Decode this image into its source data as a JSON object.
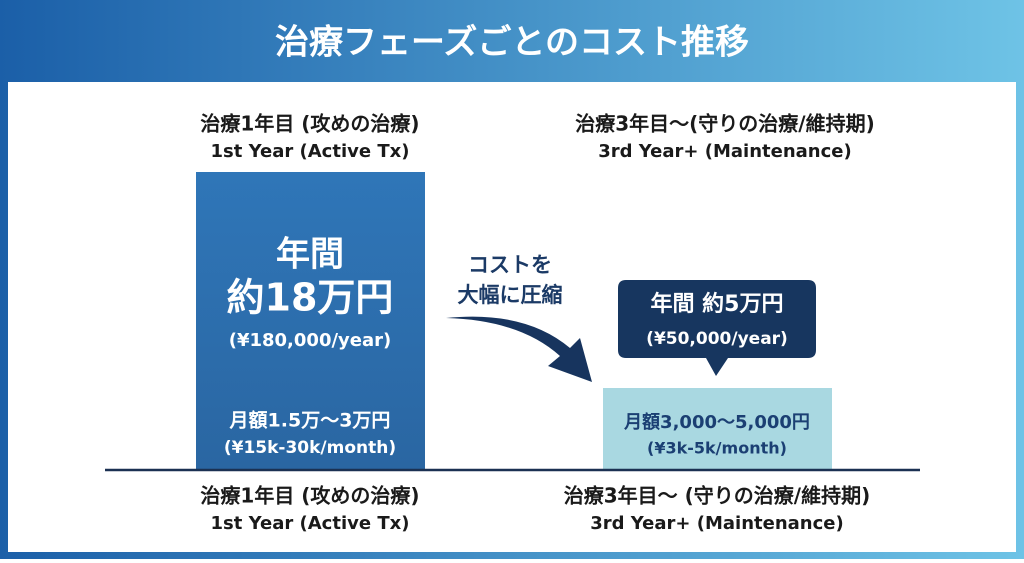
{
  "title": "治療フェーズごとのコスト推移",
  "columns": [
    {
      "header_ja": "治療1年目 (攻めの治療)",
      "header_en": "1st Year (Active Tx)",
      "annual_label": "年間",
      "annual_amount": "約18万円",
      "annual_en": "(¥180,000/year)",
      "monthly_ja": "月額1.5万〜3万円",
      "monthly_en": "(¥15k-30k/month)",
      "footer_ja": "治療1年目 (攻めの治療)",
      "footer_en": "1st Year (Active Tx)"
    },
    {
      "header_ja": "治療3年目〜(守りの治療/維持期)",
      "header_en": "3rd Year+ (Maintenance)",
      "annual_label": "年間 約5万円",
      "annual_en": "(¥50,000/year)",
      "monthly_ja": "月額3,000〜5,000円",
      "monthly_en": "(¥3k-5k/month)",
      "footer_ja": "治療3年目〜 (守りの治療/維持期)",
      "footer_en": "3rd Year+ (Maintenance)"
    }
  ],
  "arrow_label": [
    "コストを",
    "大幅に圧縮"
  ]
}
